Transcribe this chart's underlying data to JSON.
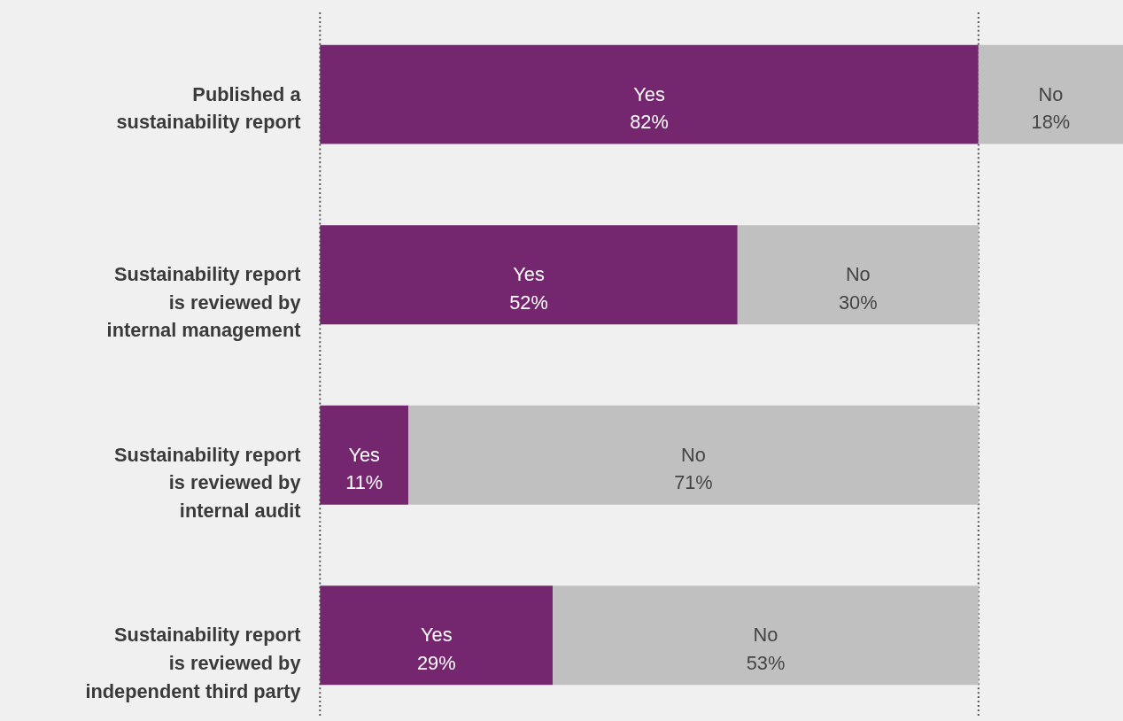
{
  "chart_data": {
    "type": "bar",
    "orientation": "horizontal",
    "stacked": true,
    "categories": [
      "Published a\nsustainability report",
      "Sustainability report\nis reviewed by\ninternal management",
      "Sustainability report\nis reviewed by\ninternal audit",
      "Sustainability report\nis reviewed by\nindependent third party"
    ],
    "series": [
      {
        "name": "Yes",
        "color": "#74276f",
        "values": [
          82,
          52,
          11,
          29
        ],
        "value_labels": [
          "82%",
          "52%",
          "11%",
          "29%"
        ]
      },
      {
        "name": "No",
        "color": "#c0c0c0",
        "values": [
          18,
          30,
          71,
          53
        ],
        "value_labels": [
          "18%",
          "30%",
          "71%",
          "53%"
        ]
      }
    ],
    "xlim": [
      0,
      100
    ],
    "ref_lines": [
      {
        "axis": "x",
        "value": 0,
        "color": "#555555",
        "line_style": "dotted"
      },
      {
        "axis": "x",
        "value": 82,
        "color": "#555555",
        "line_style": "dotted"
      }
    ],
    "grid": false,
    "tick_labels": "y"
  }
}
